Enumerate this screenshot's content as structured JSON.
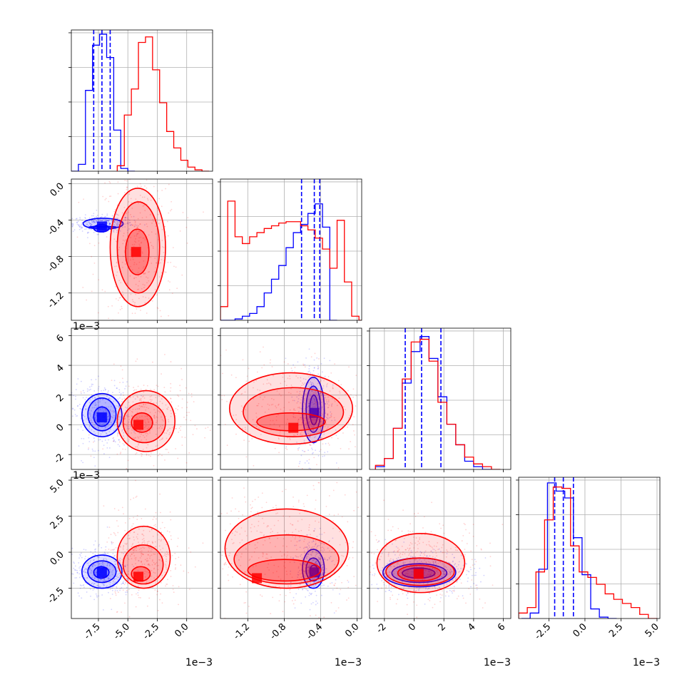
{
  "colors": {
    "samples_a": "#0000ff",
    "samples_b": "#ff0000",
    "grid": "#b0b0b0"
  },
  "chart_data": {
    "type": "corner",
    "grid": true,
    "parameters": [
      {
        "range": [
          -0.0098,
          0.0022
        ],
        "ticks": [
          "-7.5",
          "-5.0",
          "-2.5",
          "0.0"
        ],
        "tick_values": [
          -0.0075,
          -0.005,
          -0.0025,
          0.0
        ],
        "offset_text": "1e−3"
      },
      {
        "range": [
          -0.0015,
          5e-05
        ],
        "ticks": [
          "-1.2",
          "-0.8",
          "-0.4",
          "0.0"
        ],
        "tick_values": [
          -0.0012,
          -0.0008,
          -0.0004,
          0.0
        ],
        "offset_text": "1e−3"
      },
      {
        "range": [
          -0.003,
          0.0065
        ],
        "ticks": [
          "-2",
          "0",
          "2",
          "4",
          "6"
        ],
        "tick_values": [
          -0.002,
          0.0,
          0.002,
          0.004,
          0.006
        ],
        "offset_text": "1e−3"
      },
      {
        "range": [
          -0.0046,
          0.0052
        ],
        "ticks": [
          "-2.5",
          "0.0",
          "2.5",
          "5.0"
        ],
        "tick_values": [
          -0.0025,
          0.0,
          0.0025,
          0.005
        ],
        "offset_text": "1e−3"
      }
    ],
    "y_axis_ticks": {
      "1": {
        "ticks": [
          "0.0",
          "-0.4",
          "-0.8",
          "-1.2"
        ],
        "tick_values": [
          0.0,
          -0.0004,
          -0.0008,
          -0.0012
        ]
      },
      "2": {
        "ticks": [
          "6",
          "4",
          "2",
          "0",
          "-2"
        ],
        "tick_values": [
          0.006,
          0.004,
          0.002,
          0.0,
          -0.002
        ]
      },
      "3": {
        "ticks": [
          "5.0",
          "2.5",
          "0.0",
          "-2.5"
        ],
        "tick_values": [
          0.005,
          0.0025,
          0.0,
          -0.0025
        ]
      }
    },
    "series": [
      {
        "color": "#0000ff",
        "histograms": [
          {
            "edges": [
              -0.0098,
              -0.0092,
              -0.0086,
              -0.008,
              -0.0074,
              -0.0068,
              -0.0062,
              -0.0056,
              -0.005,
              -0.0044
            ],
            "counts": [
              0.0,
              0.05,
              0.59,
              0.92,
              1.0,
              0.83,
              0.3,
              0.02,
              0.0
            ]
          },
          {
            "edges": [
              -0.0015,
              -0.00142,
              -0.00134,
              -0.00126,
              -0.00118,
              -0.0011,
              -0.00102,
              -0.00094,
              -0.00086,
              -0.00078,
              -0.0007,
              -0.00062,
              -0.00054,
              -0.00046,
              -0.00038,
              -0.0003,
              -0.00022
            ],
            "counts": [
              0.0,
              0.0,
              0.01,
              0.03,
              0.05,
              0.1,
              0.2,
              0.3,
              0.4,
              0.53,
              0.64,
              0.7,
              0.78,
              0.85,
              0.68,
              0.0
            ]
          },
          {
            "edges": [
              -0.0026,
              -0.002,
              -0.0014,
              -0.0008,
              -0.0002,
              0.0004,
              0.001,
              0.0016,
              0.0022,
              0.0028,
              0.0034,
              0.004,
              0.0046,
              0.0052
            ],
            "counts": [
              0.02,
              0.08,
              0.3,
              0.63,
              0.86,
              0.97,
              0.81,
              0.53,
              0.33,
              0.18,
              0.06,
              0.02,
              0.0
            ]
          },
          {
            "edges": [
              -0.0044,
              -0.0038,
              -0.0032,
              -0.0026,
              -0.002,
              -0.0014,
              -0.0008,
              -0.0002,
              0.0004,
              0.001,
              0.0016,
              0.0022
            ],
            "counts": [
              0.0,
              0.04,
              0.36,
              0.99,
              0.93,
              0.88,
              0.59,
              0.32,
              0.07,
              0.01,
              0.0
            ]
          }
        ],
        "quantiles": [
          [
            -0.0079,
            -0.0072,
            -0.0065
          ],
          [
            -0.00061,
            -0.00047,
            -0.00041
          ],
          [
            -0.0006,
            0.0005,
            0.0018
          ],
          [
            -0.0021,
            -0.0015,
            -0.0008
          ]
        ],
        "pairs": {
          "1-0": {
            "mode": [
              -0.0072,
              -0.00047
            ],
            "contours": [
              [
                -0.0088,
                -0.0054,
                -0.0005,
                -0.00038
              ],
              [
                -0.0083,
                -0.006,
                -0.00048,
                -0.00047
              ],
              [
                -0.0079,
                -0.0066,
                -0.00045,
                -0.00053
              ]
            ]
          },
          "2-0": {
            "mode": [
              -0.0072,
              0.0005
            ],
            "contours": [
              [
                -0.0089,
                -0.0055,
                -0.0008,
                0.0021
              ],
              [
                -0.0084,
                -0.006,
                -0.0004,
                0.0018
              ],
              [
                -0.0079,
                -0.0065,
                -0.0001,
                0.0012
              ]
            ]
          },
          "2-1": {
            "mode": [
              -0.00047,
              0.0008
            ],
            "contours": [
              [
                -0.0006,
                -0.00036,
                -0.0012,
                0.0032
              ],
              [
                -0.00056,
                -0.0004,
                -0.0005,
                0.0026
              ],
              [
                -0.00052,
                -0.00043,
                0.0,
                0.002
              ]
            ]
          },
          "3-0": {
            "mode": [
              -0.0072,
              -0.0014
            ],
            "contours": [
              [
                -0.0089,
                -0.0055,
                -0.0025,
                -0.0002
              ],
              [
                -0.0084,
                -0.006,
                -0.0021,
                -0.0006
              ],
              [
                -0.0079,
                -0.0066,
                -0.0018,
                -0.001
              ]
            ]
          },
          "3-1": {
            "mode": [
              -0.00047,
              -0.0014
            ],
            "contours": [
              [
                -0.0006,
                -0.00036,
                -0.0025,
                0.0002
              ],
              [
                -0.00056,
                -0.0004,
                -0.002,
                -0.0004
              ],
              [
                -0.00052,
                -0.00043,
                -0.0017,
                -0.0009
              ]
            ]
          },
          "3-2": {
            "mode": [
              0.0003,
              -0.0014
            ],
            "contours": [
              [
                -0.0021,
                0.0028,
                -0.0024,
                -0.0004
              ],
              [
                -0.0015,
                0.0022,
                -0.0021,
                -0.0008
              ],
              [
                -0.0008,
                0.0014,
                -0.0018,
                -0.0011
              ]
            ]
          }
        }
      },
      {
        "color": "#ff0000",
        "histograms": [
          {
            "edges": [
              -0.0059,
              -0.0053,
              -0.0047,
              -0.0041,
              -0.0035,
              -0.0029,
              -0.0023,
              -0.0017,
              -0.0011,
              -0.0005,
              0.0001,
              0.0007,
              0.0013,
              0.0019
            ],
            "counts": [
              0.04,
              0.41,
              0.6,
              0.94,
              0.98,
              0.74,
              0.5,
              0.29,
              0.17,
              0.08,
              0.03,
              0.01,
              0.0
            ]
          },
          {
            "edges": [
              -0.0015,
              -0.00142,
              -0.00134,
              -0.00126,
              -0.00118,
              -0.0011,
              -0.00102,
              -0.00094,
              -0.00086,
              -0.00078,
              -0.0007,
              -0.00062,
              -0.00054,
              -0.00046,
              -0.00038,
              -0.0003,
              -0.00022,
              -0.00014,
              -6e-05,
              2e-05,
              5e-05
            ],
            "counts": [
              0.1,
              0.87,
              0.61,
              0.56,
              0.61,
              0.64,
              0.67,
              0.69,
              0.71,
              0.72,
              0.72,
              0.69,
              0.66,
              0.6,
              0.52,
              0.38,
              0.73,
              0.28,
              0.03,
              0.0
            ]
          },
          {
            "edges": [
              -0.0026,
              -0.002,
              -0.0014,
              -0.0008,
              -0.0002,
              0.0004,
              0.001,
              0.0016,
              0.0022,
              0.0028,
              0.0034,
              0.004,
              0.0046,
              0.0052,
              0.0058
            ],
            "counts": [
              0.03,
              0.08,
              0.3,
              0.66,
              0.93,
              0.95,
              0.79,
              0.49,
              0.33,
              0.18,
              0.09,
              0.04,
              0.02,
              0.0
            ]
          },
          {
            "edges": [
              -0.0046,
              -0.004,
              -0.0034,
              -0.0028,
              -0.0022,
              -0.0016,
              -0.001,
              -0.0004,
              0.0002,
              0.0008,
              0.0014,
              0.002,
              0.0026,
              0.0032,
              0.0038,
              0.0044,
              0.005
            ],
            "counts": [
              0.04,
              0.08,
              0.34,
              0.72,
              0.96,
              0.95,
              0.53,
              0.34,
              0.3,
              0.25,
              0.18,
              0.14,
              0.11,
              0.08,
              0.03,
              0.0
            ]
          }
        ],
        "pairs": {
          "1-0": {
            "mode": [
              -0.0043,
              -0.00075
            ],
            "contours": [
              [
                -0.0065,
                -0.0018,
                -0.00135,
                -5e-05
              ],
              [
                -0.0059,
                -0.0023,
                -0.0012,
                -0.0002
              ],
              [
                -0.0052,
                -0.0032,
                -0.001,
                -0.0005
              ]
            ]
          },
          "2-0": {
            "mode": [
              -0.0041,
              0.0
            ],
            "contours": [
              [
                -0.0059,
                -0.001,
                -0.0018,
                0.0023
              ],
              [
                -0.0054,
                -0.0018,
                -0.0012,
                0.0015
              ],
              [
                -0.0047,
                -0.0029,
                -0.0005,
                0.0008
              ]
            ]
          },
          "2-1": {
            "mode": [
              -0.0007,
              -0.0002
            ],
            "contours": [
              [
                -0.0014,
                -5e-05,
                -0.0013,
                0.0035
              ],
              [
                -0.00125,
                -0.00015,
                -0.0008,
                0.0025
              ],
              [
                -0.0011,
                -0.00035,
                -0.0004,
                0.0008
              ]
            ]
          },
          "3-0": {
            "mode": [
              -0.0041,
              -0.0017
            ],
            "contours": [
              [
                -0.0059,
                -0.0014,
                -0.0025,
                0.0018
              ],
              [
                -0.0054,
                -0.002,
                -0.0022,
                0.0005
              ],
              [
                -0.0047,
                -0.0031,
                -0.002,
                -0.001
              ]
            ]
          },
          "3-1": {
            "mode": [
              -0.0011,
              -0.0018
            ],
            "contours": [
              [
                -0.00145,
                -0.0001,
                -0.0025,
                0.003
              ],
              [
                -0.00135,
                -0.0002,
                -0.0022,
                0.0012
              ],
              [
                -0.0012,
                -0.0004,
                -0.002,
                -0.0005
              ]
            ]
          },
          "3-2": {
            "mode": [
              0.0003,
              -0.0015
            ],
            "contours": [
              [
                -0.0025,
                0.0034,
                -0.0028,
                0.0013
              ],
              [
                -0.0019,
                0.0027,
                -0.0023,
                -0.0004
              ],
              [
                -0.0011,
                0.0018,
                -0.002,
                -0.0009
              ]
            ]
          }
        }
      }
    ]
  }
}
